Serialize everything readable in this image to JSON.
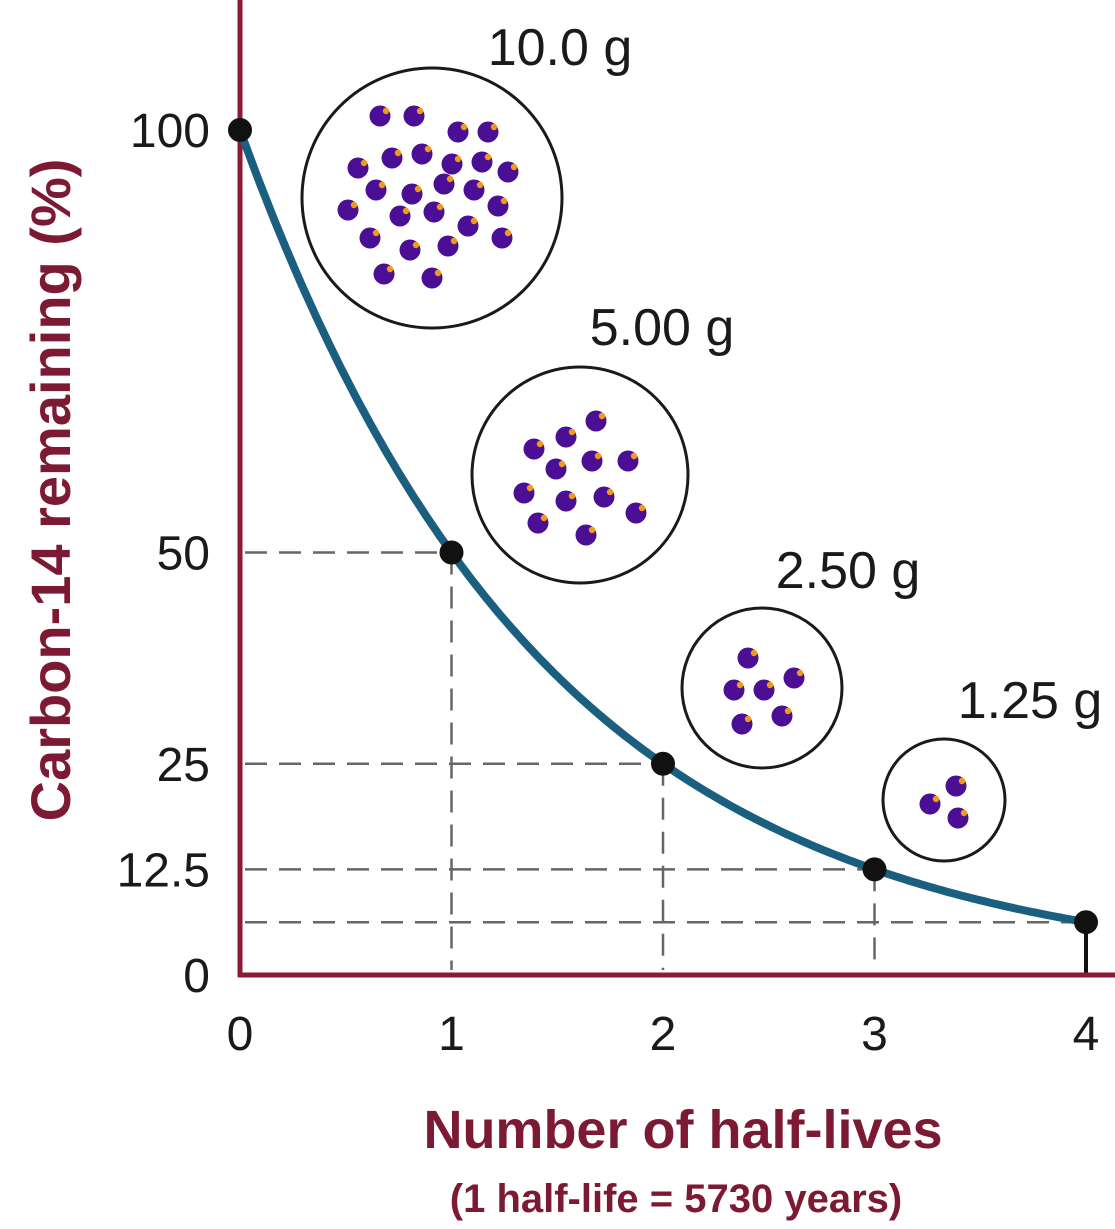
{
  "chart_data": {
    "type": "line",
    "xlabel": "Number of half-lives",
    "xlabel_note": "(1 half-life = 5730 years)",
    "ylabel": "Carbon-14 remaining (%)",
    "x": [
      0,
      1,
      2,
      3,
      4
    ],
    "y": [
      100,
      50,
      25,
      12.5,
      6.25
    ],
    "xlim": [
      0,
      4
    ],
    "ylim": [
      0,
      100
    ],
    "x_ticks": [
      "0",
      "1",
      "2",
      "3",
      "4"
    ],
    "y_ticks": [
      {
        "value": 0,
        "label": "0"
      },
      {
        "value": 12.5,
        "label": "12.5"
      },
      {
        "value": 25,
        "label": "25"
      },
      {
        "value": 50,
        "label": "50"
      },
      {
        "value": 100,
        "label": "100"
      }
    ],
    "guide_lines_y": [
      50,
      25,
      12.5,
      6.25
    ],
    "annotations": [
      {
        "label": "10.0 g",
        "atoms": 25
      },
      {
        "label": "5.00 g",
        "atoms": 13
      },
      {
        "label": "2.50 g",
        "atoms": 6
      },
      {
        "label": "1.25 g",
        "atoms": 3
      }
    ],
    "colors": {
      "curve": "#1b5f80",
      "axis": "#8b1a35",
      "label": "#7d1a33",
      "atom": "#4b0f96",
      "atom_highlight": "#f29a18",
      "point": "#111111",
      "guide": "#666666",
      "text": "#1a1a1a"
    }
  }
}
